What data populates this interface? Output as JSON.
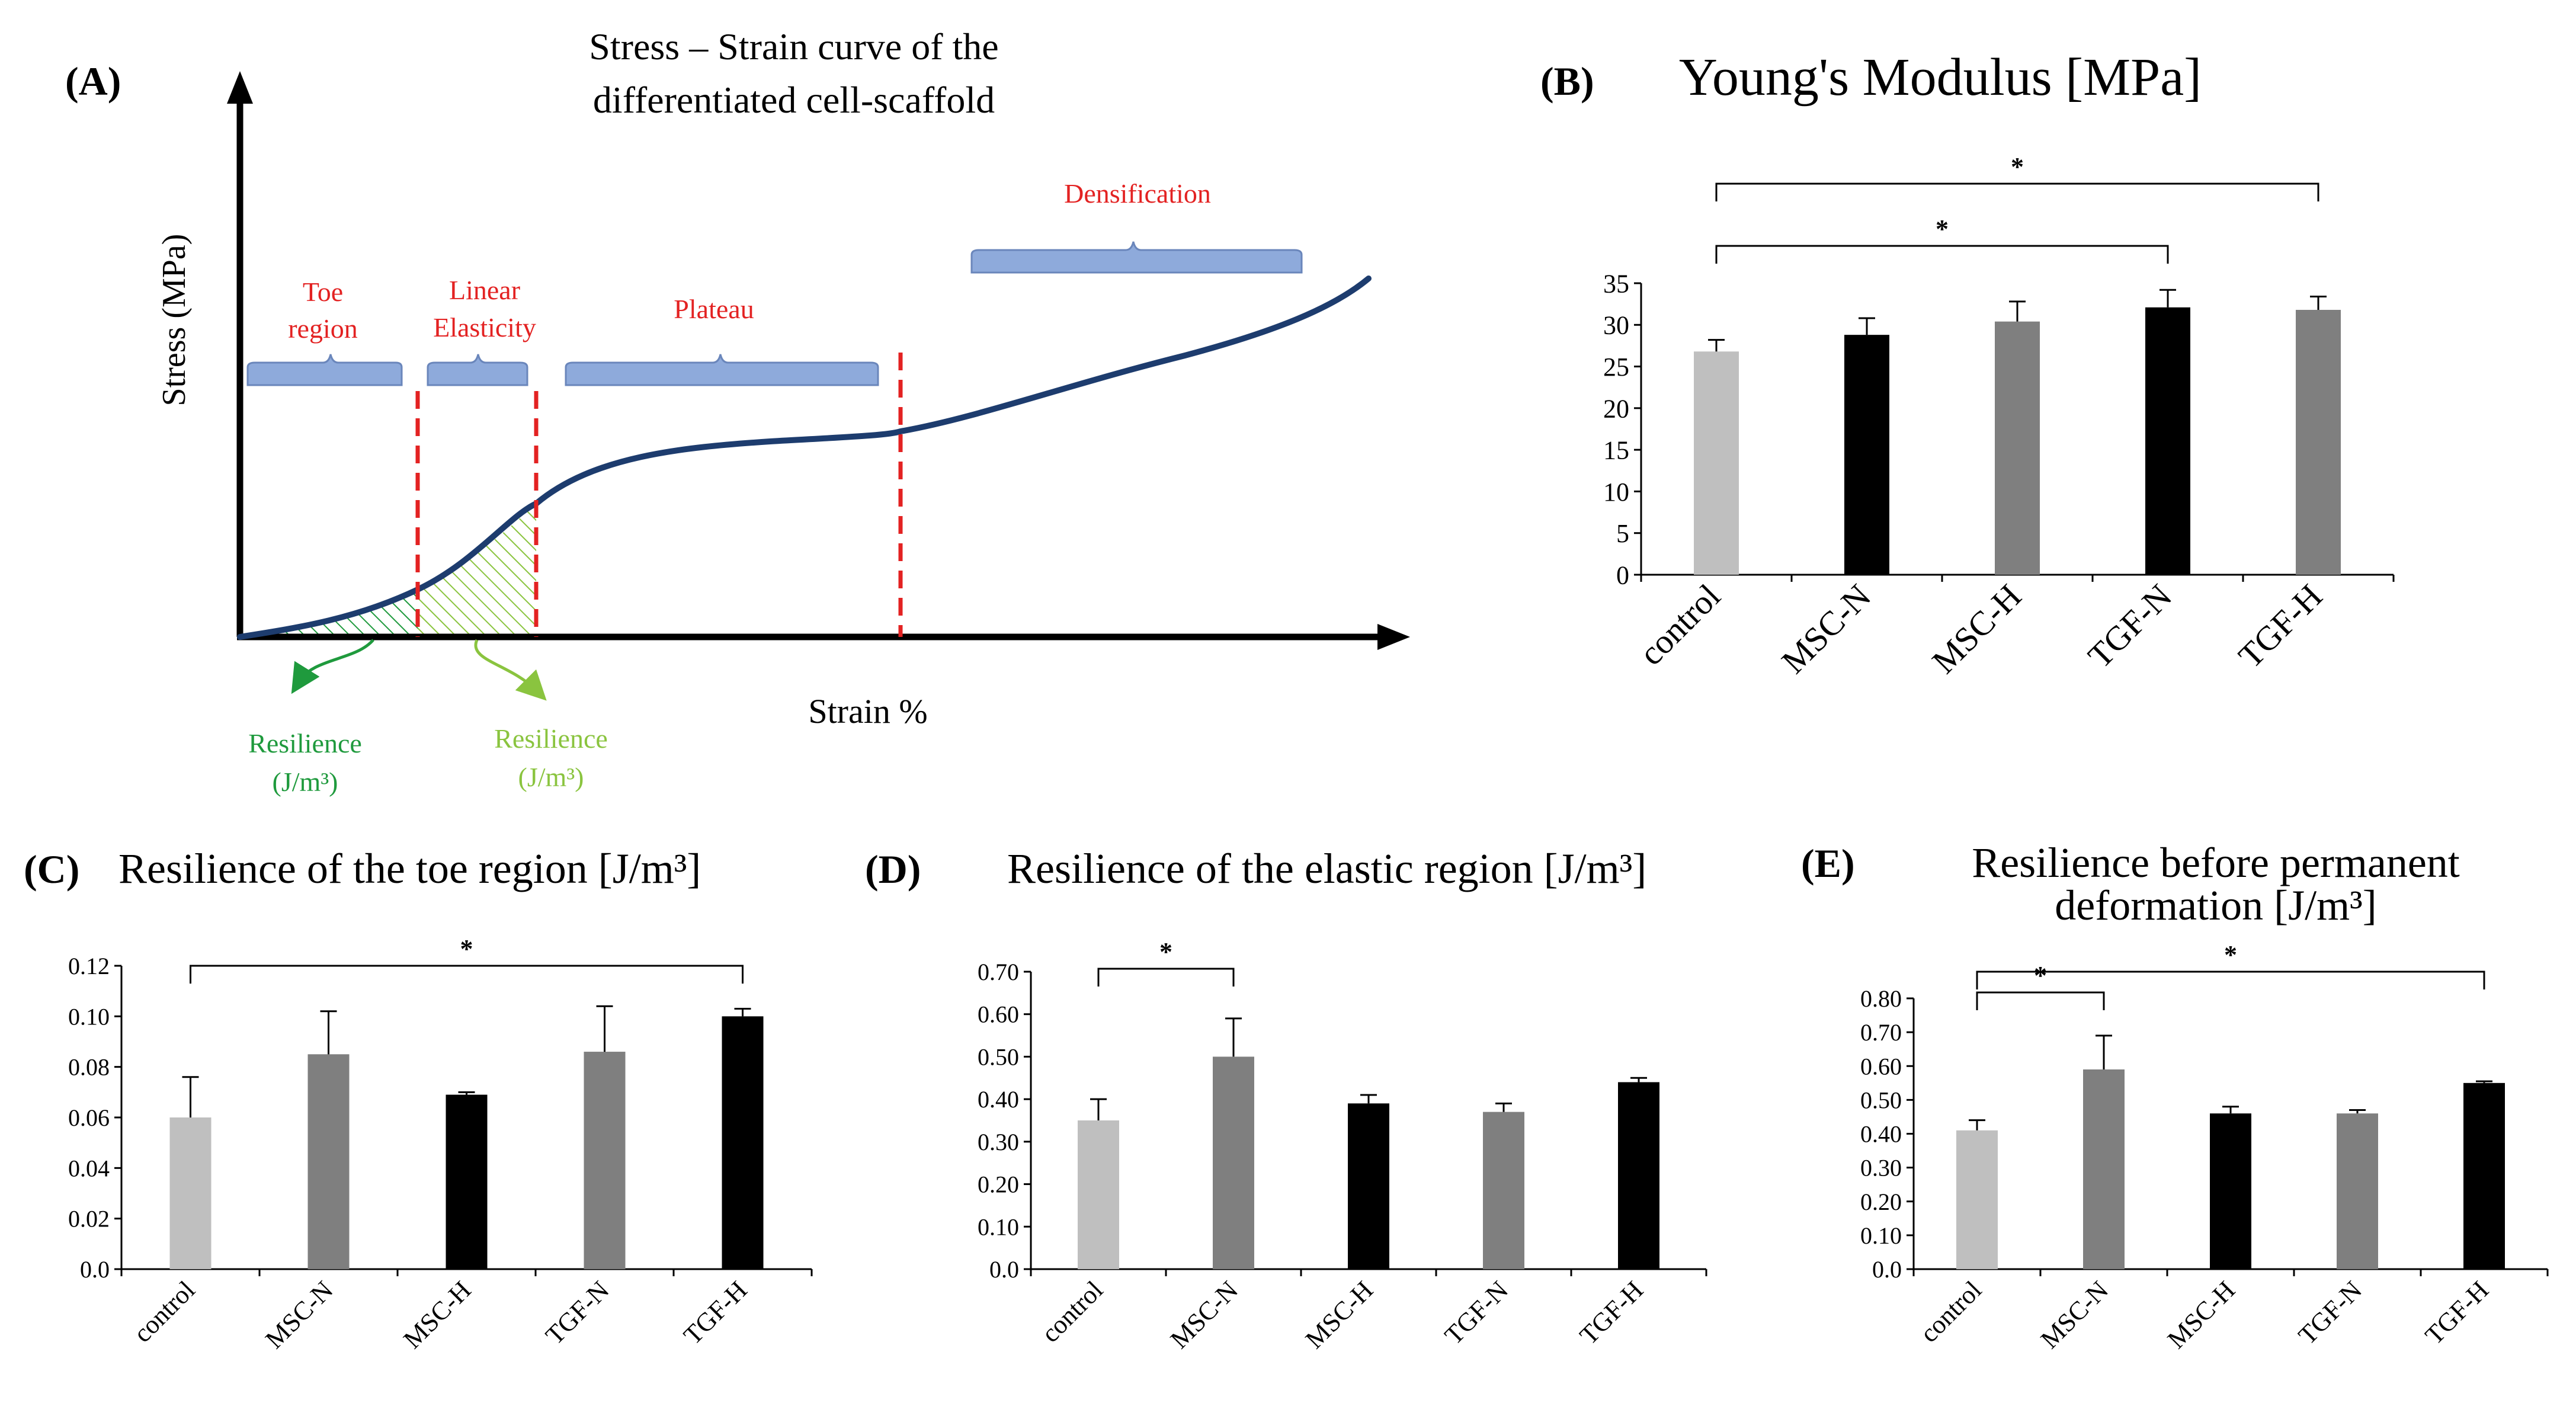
{
  "panelA": {
    "label": "(A)",
    "title_line1": "Stress – Strain curve of the",
    "title_line2": "differentiated cell-scaffold",
    "ylabel": "Stress (MPa)",
    "xlabel": "Strain %",
    "regions": {
      "toe_line1": "Toe",
      "toe_line2": "region",
      "linear_line1": "Linear",
      "linear_line2": "Elasticity",
      "plateau": "Plateau",
      "densification": "Densification"
    },
    "resilience1_line1": "Resilience",
    "resilience1_line2": "(J/m³)",
    "resilience2_line1": "Resilience",
    "resilience2_line2": "(J/m³)",
    "colors": {
      "curve": "#1d3c6e",
      "region_label": "#e32222",
      "brace": "#8eaadb",
      "hatch_toe": "#1f9a3d",
      "hatch_linear": "#8ac43f"
    }
  },
  "chart_data": [
    {
      "id": "B",
      "label": "(B)",
      "type": "bar",
      "title": "Young's Modulus [MPa]",
      "categories": [
        "control",
        "MSC-N",
        "MSC-H",
        "TGF-N",
        "TGF-H"
      ],
      "values": [
        26.8,
        28.8,
        30.4,
        32.1,
        31.8
      ],
      "errors": [
        1.4,
        2.0,
        2.4,
        2.1,
        1.6
      ],
      "colors": [
        "#bfbfbf",
        "#000000",
        "#7f7f7f",
        "#000000",
        "#7f7f7f"
      ],
      "ylim": [
        0,
        35
      ],
      "yticks": [
        "0",
        "5",
        "10",
        "15",
        "20",
        "25",
        "30",
        "35"
      ],
      "significance": [
        {
          "from": 0,
          "to": 4,
          "label": "*"
        },
        {
          "from": 0,
          "to": 3,
          "label": "*"
        }
      ]
    },
    {
      "id": "C",
      "label": "(C)",
      "type": "bar",
      "title": "Resilience of the toe region [J/m³]",
      "categories": [
        "control",
        "MSC-N",
        "MSC-H",
        "TGF-N",
        "TGF-H"
      ],
      "values": [
        0.06,
        0.085,
        0.069,
        0.086,
        0.1
      ],
      "errors": [
        0.016,
        0.017,
        0.001,
        0.018,
        0.003
      ],
      "colors": [
        "#bfbfbf",
        "#7f7f7f",
        "#000000",
        "#7f7f7f",
        "#000000"
      ],
      "ylim": [
        0,
        0.12
      ],
      "yticks": [
        "0.0",
        "0.02",
        "0.04",
        "0.06",
        "0.08",
        "0.10",
        "0.12"
      ],
      "significance": [
        {
          "from": 0,
          "to": 4,
          "label": "*"
        }
      ]
    },
    {
      "id": "D",
      "label": "(D)",
      "type": "bar",
      "title": "Resilience of the elastic region [J/m³]",
      "categories": [
        "control",
        "MSC-N",
        "MSC-H",
        "TGF-N",
        "TGF-H"
      ],
      "values": [
        0.35,
        0.5,
        0.39,
        0.37,
        0.44
      ],
      "errors": [
        0.05,
        0.09,
        0.02,
        0.02,
        0.01
      ],
      "colors": [
        "#bfbfbf",
        "#7f7f7f",
        "#000000",
        "#7f7f7f",
        "#000000"
      ],
      "ylim": [
        0,
        0.7
      ],
      "yticks": [
        "0.0",
        "0.10",
        "0.20",
        "0.30",
        "0.40",
        "0.50",
        "0.60",
        "0.70"
      ],
      "significance": [
        {
          "from": 0,
          "to": 1,
          "label": "*"
        }
      ]
    },
    {
      "id": "E",
      "label": "(E)",
      "type": "bar",
      "title": "Resilience before permanent deformation [J/m³]",
      "title_line1": "Resilience before permanent",
      "title_line2": "deformation [J/m³]",
      "categories": [
        "control",
        "MSC-N",
        "MSC-H",
        "TGF-N",
        "TGF-H"
      ],
      "values": [
        0.41,
        0.59,
        0.46,
        0.46,
        0.55
      ],
      "errors": [
        0.03,
        0.1,
        0.02,
        0.01,
        0.005
      ],
      "colors": [
        "#bfbfbf",
        "#7f7f7f",
        "#000000",
        "#7f7f7f",
        "#000000"
      ],
      "ylim": [
        0,
        0.8
      ],
      "yticks": [
        "0.0",
        "0.10",
        "0.20",
        "0.30",
        "0.40",
        "0.50",
        "0.60",
        "0.70",
        "0.80"
      ],
      "significance": [
        {
          "from": 0,
          "to": 1,
          "label": "*"
        },
        {
          "from": 0,
          "to": 4,
          "label": "*"
        }
      ]
    }
  ]
}
